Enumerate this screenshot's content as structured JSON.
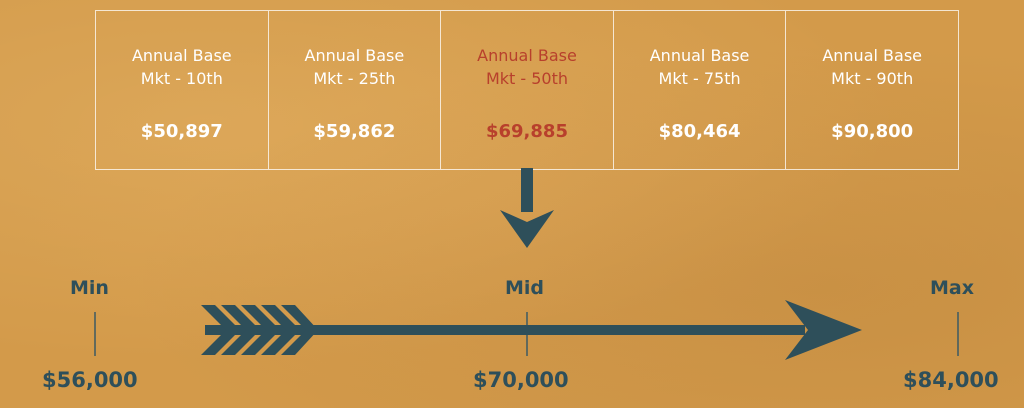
{
  "table": {
    "columns": [
      {
        "line1": "Annual Base",
        "line2": "Mkt - 10th",
        "value": "$50,897",
        "highlight": false
      },
      {
        "line1": "Annual Base",
        "line2": "Mkt - 25th",
        "value": "$59,862",
        "highlight": false
      },
      {
        "line1": "Annual Base",
        "line2": "Mkt - 50th",
        "value": "$69,885",
        "highlight": true
      },
      {
        "line1": "Annual Base",
        "line2": "Mkt - 75th",
        "value": "$80,464",
        "highlight": false
      },
      {
        "line1": "Annual Base",
        "line2": "Mkt - 90th",
        "value": "$90,800",
        "highlight": false
      }
    ]
  },
  "scale": {
    "min_label": "Min",
    "mid_label": "Mid",
    "max_label": "Max",
    "min_value": "$56,000",
    "mid_value": "$70,000",
    "max_value": "$84,000"
  },
  "colors": {
    "background": "#d39a4a",
    "arrow": "#2e4f5a",
    "highlight": "#b8402c",
    "text_light": "#ffffff"
  },
  "icons": {
    "down_arrow": "down-arrow-icon",
    "range_arrow": "range-arrow-icon"
  }
}
